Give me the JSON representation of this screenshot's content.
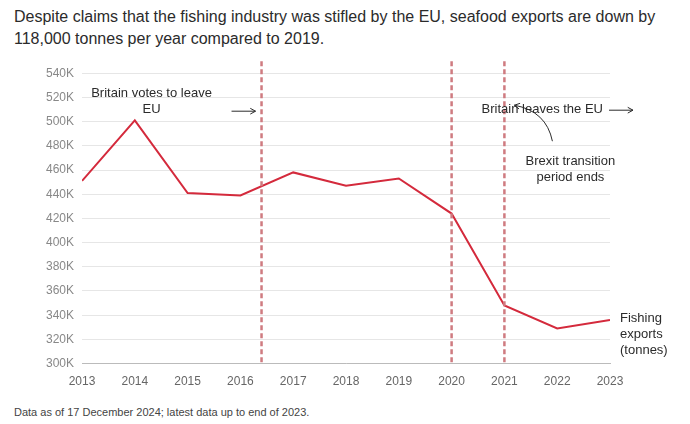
{
  "chart_data": {
    "type": "line",
    "title": "Despite claims that the fishing industry was stifled by the EU, seafood exports are down by 118,000 tonnes per year compared to 2019.",
    "x": [
      2013,
      2014,
      2015,
      2016,
      2017,
      2018,
      2019,
      2020,
      2021,
      2022,
      2023
    ],
    "xlim": [
      2013,
      2023
    ],
    "xticks": [
      2013,
      2014,
      2015,
      2016,
      2017,
      2018,
      2019,
      2020,
      2021,
      2022,
      2023
    ],
    "ylim": [
      300000,
      540000
    ],
    "yticks": [
      {
        "value": 300000,
        "label": "300K"
      },
      {
        "value": 320000,
        "label": "320K"
      },
      {
        "value": 340000,
        "label": "340K"
      },
      {
        "value": 360000,
        "label": "360K"
      },
      {
        "value": 380000,
        "label": "380K"
      },
      {
        "value": 400000,
        "label": "400K"
      },
      {
        "value": 420000,
        "label": "420K"
      },
      {
        "value": 440000,
        "label": "440K"
      },
      {
        "value": 460000,
        "label": "460K"
      },
      {
        "value": 480000,
        "label": "480K"
      },
      {
        "value": 500000,
        "label": "500K"
      },
      {
        "value": 520000,
        "label": "520K"
      },
      {
        "value": 540000,
        "label": "540K"
      }
    ],
    "grid": true,
    "series": [
      {
        "name": "Fishing exports (tonnes)",
        "color": "#d42a3c",
        "values": [
          451000,
          501000,
          441000,
          439000,
          458000,
          447000,
          453000,
          424000,
          348000,
          329000,
          336000
        ]
      }
    ],
    "annotations": [
      {
        "text": "Britain votes to leave EU",
        "x": 2016.4
      },
      {
        "text": "Britain leaves the EU",
        "x": 2020.0
      },
      {
        "text": "Brexit transition period ends",
        "x": 2021.0
      }
    ],
    "note": "Data as of 17 December 2024; latest data up to end of 2023."
  }
}
